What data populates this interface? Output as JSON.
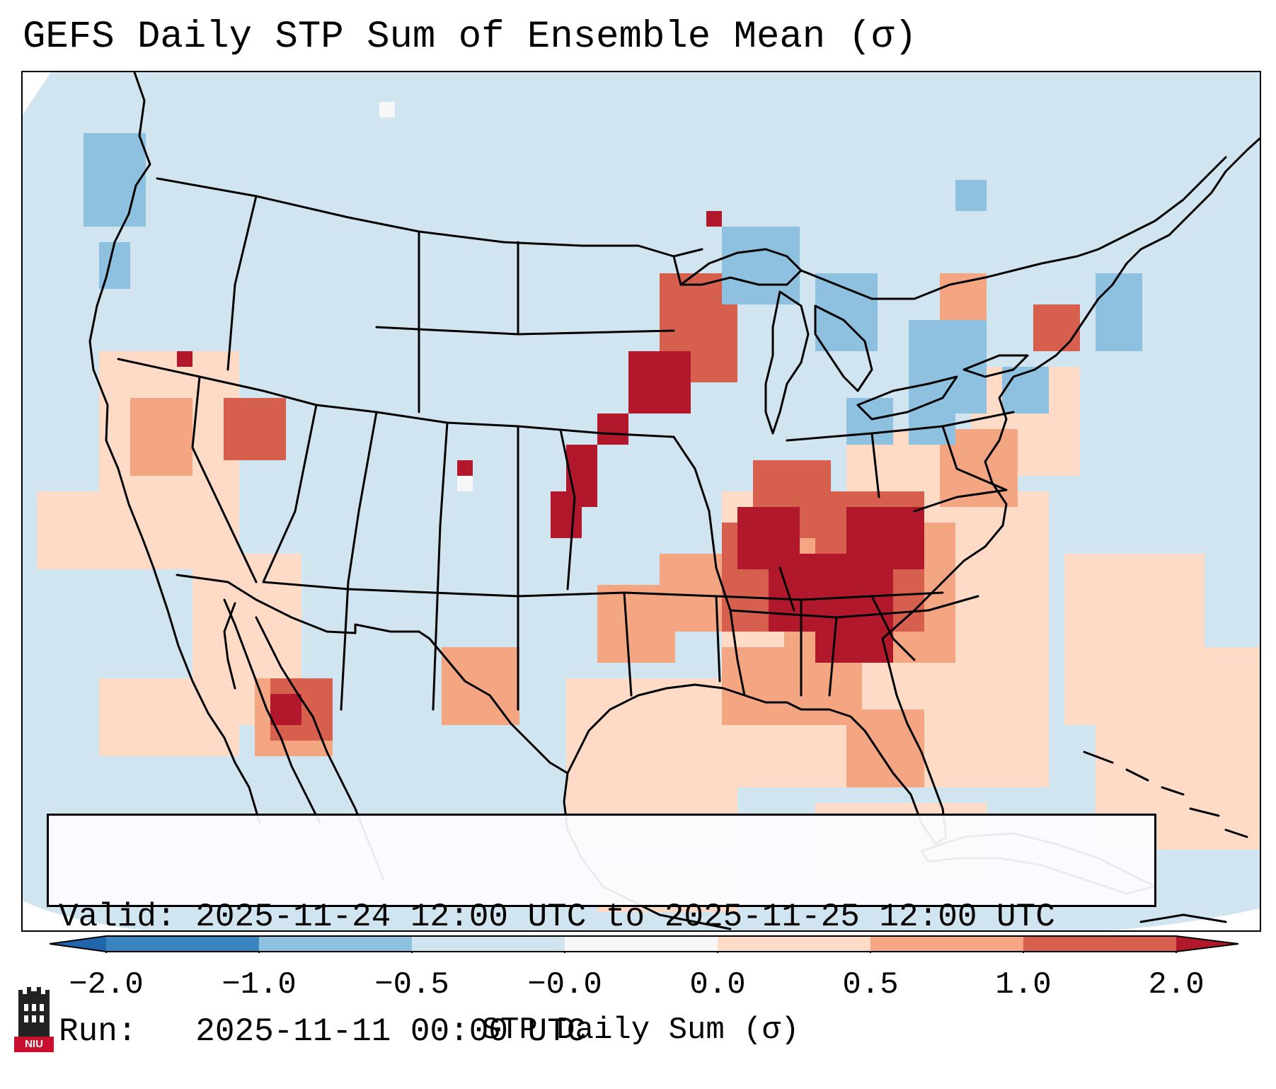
{
  "title": "GEFS Daily STP Sum of Ensemble Mean (σ)",
  "info": {
    "valid_label": "Valid:",
    "valid_text": "2025-11-24 12:00 UTC to 2025-11-25 12:00 UTC",
    "run_label": "Run:  ",
    "run_text": "2025-11-11 00:00 UTC"
  },
  "colorbar": {
    "label": "STP Daily Sum (σ)",
    "tick_labels": [
      "−2.0",
      "−1.0",
      "−0.5",
      "−0.0",
      "0.0",
      "0.5",
      "1.0",
      "2.0"
    ],
    "bin_colors": [
      "#3a84c0",
      "#8ec0e0",
      "#d1e5f0",
      "#f7f7f7",
      "#fddbc7",
      "#f4a582",
      "#d6604d",
      "#b2182b"
    ],
    "extend_min_color": "#2166ac",
    "extend_max_color": "#b2182b"
  },
  "map": {
    "background_color": "#d1e5f0",
    "outside_color": "#ffffff",
    "line_color": "#000000",
    "features": [
      {
        "name": "west-coast-coastline"
      },
      {
        "name": "gulf-coastline"
      },
      {
        "name": "east-coastline"
      },
      {
        "name": "great-lakes"
      },
      {
        "name": "us-canada-border"
      },
      {
        "name": "us-mexico-border"
      },
      {
        "name": "state-borders"
      },
      {
        "name": "baja-california"
      },
      {
        "name": "cuba"
      },
      {
        "name": "caribbean-islands"
      }
    ]
  },
  "logo": {
    "text": "NIU",
    "color": "#c8102e"
  }
}
